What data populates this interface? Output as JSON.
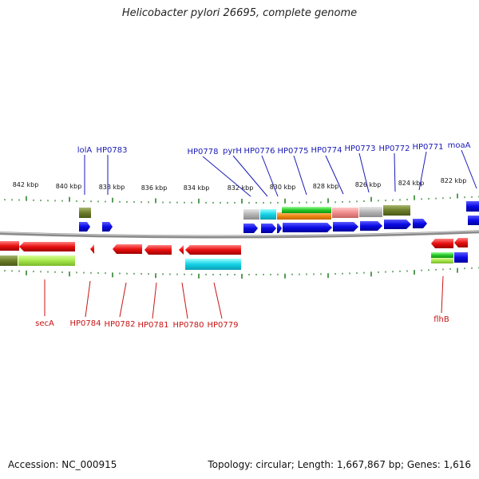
{
  "title": "Helicobacter pylori 26695, complete genome",
  "footer": {
    "accession": "Accession: NC_000915",
    "stats": "Topology: circular; Length: 1,667,867 bp; Genes: 1,616"
  },
  "scale_labels": [
    "842 kbp",
    "840 kbp",
    "838 kbp",
    "836 kbp",
    "834 kbp",
    "832 kbp",
    "830 kbp",
    "828 kbp",
    "826 kbp",
    "824 kbp",
    "822 kbp"
  ],
  "top_labels": [
    "lolA",
    "HP0783",
    "HP0778",
    "pyrH",
    "HP0776",
    "HP0775",
    "HP0774",
    "HP0773",
    "HP0772",
    "HP0771",
    "moaA"
  ],
  "bottom_labels": [
    "secA",
    "HP0784",
    "HP0782",
    "HP0781",
    "HP0780",
    "HP0779",
    "flhB"
  ],
  "colors": {
    "forward_gene": "#0a0ae6",
    "reverse_gene": "#e61414",
    "label_forward": "#1a1ab8",
    "label_reverse": "#c81414",
    "tick": "#1f7a1f",
    "backbone": "#8a8a8a"
  }
}
